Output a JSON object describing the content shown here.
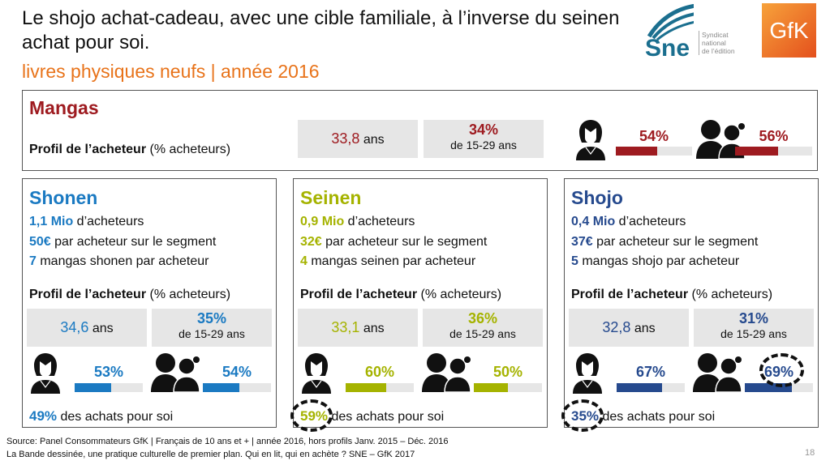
{
  "header": {
    "title": "Le shojo achat-cadeau, avec une cible familiale, à l’inverse du seinen achat pour soi.",
    "subtitle": "livres physiques neufs | année 2016"
  },
  "logos": {
    "sne": "Sne",
    "sne_text": [
      "Syndicat",
      "national",
      "de l’édition"
    ],
    "gfk": "GfK"
  },
  "profil_label": {
    "bold": "Profil de l’acheteur",
    "rest": " (% acheteurs)"
  },
  "mangas": {
    "title": "Mangas",
    "color": "#9e1b20",
    "age_value": "33,8",
    "age_unit": " ans",
    "young_pct": "34%",
    "young_label": "de 15-29 ans",
    "women_pct": "54%",
    "women": 54,
    "family_pct": "56%",
    "family": 56
  },
  "panels": [
    {
      "title": "Shonen",
      "color": "#1b7ac2",
      "buyers_val": "1,1 Mio",
      "buyers_txt": " d’acheteurs",
      "spend_val": "50€",
      "spend_txt": " par acheteur sur le segment",
      "count_val": "7",
      "count_txt": " mangas shonen par acheteur",
      "age_value": "34,6",
      "young_pct": "35%",
      "women_pct": "53%",
      "women": 53,
      "family_pct": "54%",
      "family": 54,
      "self_pct": "49%",
      "self_txt": " des achats pour soi"
    },
    {
      "title": "Seinen",
      "color": "#a5b300",
      "buyers_val": "0,9 Mio",
      "buyers_txt": " d’acheteurs",
      "spend_val": "32€",
      "spend_txt": " par acheteur sur le segment",
      "count_val": "4",
      "count_txt": " mangas seinen par acheteur",
      "age_value": "33,1",
      "young_pct": "36%",
      "women_pct": "60%",
      "women": 60,
      "family_pct": "50%",
      "family": 50,
      "self_pct": "59%",
      "self_txt": " des achats pour soi"
    },
    {
      "title": "Shojo",
      "color": "#264a8e",
      "buyers_val": "0,4 Mio",
      "buyers_txt": " d’acheteurs",
      "spend_val": "37€",
      "spend_txt": " par acheteur sur le segment",
      "count_val": "5",
      "count_txt": " mangas shojo par acheteur",
      "age_value": "32,8",
      "young_pct": "31%",
      "women_pct": "67%",
      "women": 67,
      "family_pct": "69%",
      "family": 69,
      "self_pct": "35%",
      "self_txt": " des achats pour soi"
    }
  ],
  "common": {
    "age_unit": " ans",
    "young_label": "de 15-29 ans"
  },
  "footer": {
    "source": "Source: Panel Consommateurs GfK | Français de 10 ans et + | année 2016, hors profils Janv. 2015 – Déc. 2016",
    "ref": "La Bande dessinée, une pratique culturelle de premier plan. Qui en lit, qui en achète ?  SNE – GfK 2017",
    "page": "18"
  },
  "icons": {
    "woman": "woman-icon",
    "family": "parent-child-icon"
  }
}
